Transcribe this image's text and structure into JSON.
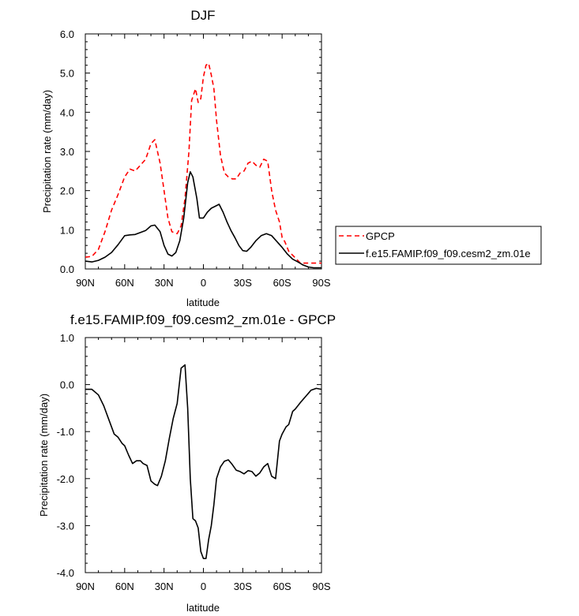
{
  "chart_data": [
    {
      "type": "line",
      "title": "DJF",
      "xlabel": "latitude",
      "ylabel": "Precipitation rate (mm/day)",
      "xlim": [
        90,
        -90
      ],
      "ylim": [
        0,
        6
      ],
      "x_ticks": [
        90,
        60,
        30,
        0,
        -30,
        -60,
        -90
      ],
      "x_tick_labels": [
        "90N",
        "60N",
        "30N",
        "0",
        "30S",
        "60S",
        "90S"
      ],
      "y_ticks": [
        0,
        1,
        2,
        3,
        4,
        5,
        6
      ],
      "y_tick_labels": [
        "0.0",
        "1.0",
        "2.0",
        "3.0",
        "4.0",
        "5.0",
        "6.0"
      ],
      "legend_position": "right-outside",
      "series": [
        {
          "name": "GPCP",
          "color": "#ff0000",
          "dash": "dashed",
          "x": [
            90,
            85,
            80,
            75,
            70,
            65,
            60,
            56,
            52,
            48,
            44,
            40,
            37,
            33,
            30,
            27,
            24,
            20,
            17,
            14,
            11,
            9,
            6,
            4,
            2,
            0,
            -2,
            -4,
            -6,
            -8,
            -10,
            -13,
            -16,
            -19,
            -22,
            -25,
            -28,
            -31,
            -34,
            -37,
            -40,
            -43,
            -46,
            -49,
            -52,
            -55,
            -58,
            -60,
            -62,
            -65,
            -68,
            -71,
            -74,
            -77,
            -80,
            -83,
            -86,
            -90
          ],
          "y": [
            0.3,
            0.32,
            0.5,
            0.95,
            1.5,
            1.9,
            2.35,
            2.55,
            2.5,
            2.65,
            2.8,
            3.2,
            3.3,
            2.7,
            2.0,
            1.3,
            0.95,
            0.9,
            1.1,
            1.8,
            3.0,
            4.3,
            4.6,
            4.25,
            4.35,
            4.9,
            5.2,
            5.25,
            4.95,
            4.6,
            3.8,
            2.9,
            2.45,
            2.35,
            2.3,
            2.3,
            2.45,
            2.5,
            2.7,
            2.75,
            2.65,
            2.6,
            2.8,
            2.75,
            2.0,
            1.5,
            1.2,
            0.8,
            0.7,
            0.45,
            0.35,
            0.25,
            0.15,
            0.15,
            0.15,
            0.15,
            0.15,
            0.15
          ]
        },
        {
          "name": "f.e15.FAMIP.f09_f09.cesm2_zm.01e",
          "color": "#000000",
          "dash": "solid",
          "x": [
            90,
            85,
            80,
            75,
            70,
            65,
            60,
            56,
            52,
            48,
            44,
            40,
            37,
            33,
            30,
            27,
            24,
            21,
            18,
            15,
            12,
            10,
            8,
            5,
            3,
            0,
            -3,
            -6,
            -9,
            -12,
            -15,
            -18,
            -21,
            -24,
            -27,
            -30,
            -33,
            -36,
            -40,
            -44,
            -48,
            -52,
            -56,
            -60,
            -64,
            -68,
            -72,
            -76,
            -80,
            -84,
            -87,
            -90
          ],
          "y": [
            0.2,
            0.18,
            0.22,
            0.3,
            0.42,
            0.62,
            0.85,
            0.87,
            0.88,
            0.93,
            0.98,
            1.1,
            1.12,
            0.95,
            0.6,
            0.38,
            0.33,
            0.42,
            0.72,
            1.3,
            2.2,
            2.48,
            2.35,
            1.8,
            1.3,
            1.3,
            1.45,
            1.55,
            1.6,
            1.65,
            1.45,
            1.2,
            0.98,
            0.8,
            0.6,
            0.47,
            0.45,
            0.55,
            0.72,
            0.85,
            0.9,
            0.85,
            0.7,
            0.55,
            0.38,
            0.25,
            0.18,
            0.1,
            0.05,
            0.03,
            0.03,
            0.03
          ]
        }
      ]
    },
    {
      "type": "line",
      "title": "f.e15.FAMIP.f09_f09.cesm2_zm.01e - GPCP",
      "xlabel": "latitude",
      "ylabel": "Precipitation rate (mm/day)",
      "xlim": [
        90,
        -90
      ],
      "ylim": [
        -4,
        1
      ],
      "x_ticks": [
        90,
        60,
        30,
        0,
        -30,
        -60,
        -90
      ],
      "x_tick_labels": [
        "90N",
        "60N",
        "30N",
        "0",
        "30S",
        "60S",
        "90S"
      ],
      "y_ticks": [
        -4,
        -3,
        -2,
        -1,
        0,
        1
      ],
      "y_tick_labels": [
        "-4.0",
        "-3.0",
        "-2.0",
        "-1.0",
        "0.0",
        "1.0"
      ],
      "series": [
        {
          "color": "#000000",
          "dash": "solid",
          "x": [
            90,
            85,
            80,
            76,
            72,
            68,
            65,
            62,
            60,
            57,
            54,
            51,
            48,
            46,
            43,
            40,
            37,
            35,
            32,
            29,
            26,
            23,
            20,
            17,
            14,
            12,
            10,
            8,
            6,
            4,
            2,
            0,
            -2,
            -4,
            -6,
            -8,
            -10,
            -13,
            -16,
            -19,
            -22,
            -25,
            -28,
            -31,
            -34,
            -37,
            -40,
            -43,
            -46,
            -49,
            -52,
            -55,
            -58,
            -60,
            -63,
            -65,
            -68,
            -70,
            -74,
            -78,
            -82,
            -86,
            -90
          ],
          "y": [
            -0.1,
            -0.1,
            -0.22,
            -0.45,
            -0.75,
            -1.05,
            -1.12,
            -1.25,
            -1.3,
            -1.5,
            -1.68,
            -1.62,
            -1.62,
            -1.68,
            -1.72,
            -2.05,
            -2.12,
            -2.15,
            -1.95,
            -1.62,
            -1.15,
            -0.72,
            -0.4,
            0.35,
            0.42,
            -0.5,
            -2.0,
            -2.85,
            -2.9,
            -3.05,
            -3.55,
            -3.7,
            -3.7,
            -3.3,
            -3.0,
            -2.55,
            -2.0,
            -1.75,
            -1.63,
            -1.6,
            -1.7,
            -1.82,
            -1.85,
            -1.9,
            -1.83,
            -1.85,
            -1.95,
            -1.88,
            -1.75,
            -1.68,
            -1.95,
            -2.0,
            -1.2,
            -1.05,
            -0.9,
            -0.85,
            -0.57,
            -0.52,
            -0.38,
            -0.25,
            -0.12,
            -0.08,
            -0.1
          ]
        }
      ]
    }
  ]
}
